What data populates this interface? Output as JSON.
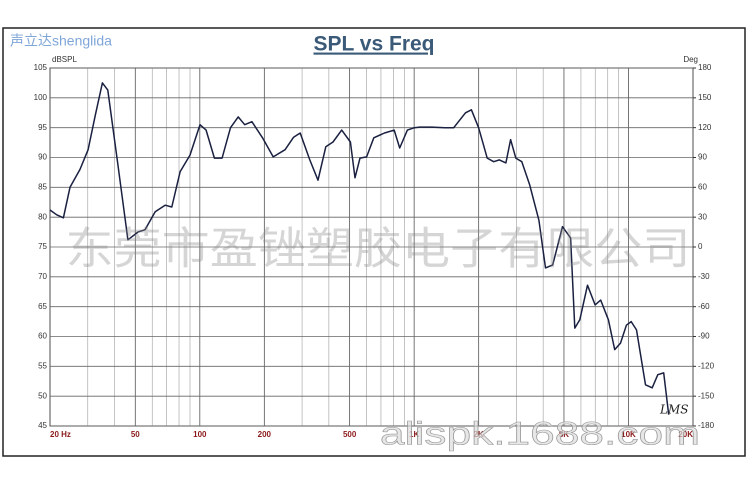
{
  "chart_data": {
    "type": "line",
    "title": "SPL vs Freq",
    "ylabel": "dBSPL",
    "y2label": "Deg",
    "watermarks": [
      "声立达shenglida",
      "东莞市盈锉塑胶电子有限公司",
      "alispk.1688.com"
    ],
    "annotation": "LMS",
    "xscale": "log",
    "grid": true,
    "xlim": [
      20,
      20000
    ],
    "xticks": [
      {
        "value": 20,
        "label": "20 Hz"
      },
      50,
      100,
      200,
      500,
      {
        "value": 1000,
        "label": "1K"
      },
      {
        "value": 2000,
        "label": "2K"
      },
      {
        "value": 5000,
        "label": "5K"
      },
      {
        "value": 10000,
        "label": "10K"
      },
      {
        "value": 20000,
        "label": "20K"
      }
    ],
    "xticks_minor": [
      30,
      40,
      60,
      70,
      80,
      90,
      300,
      400,
      600,
      700,
      800,
      900,
      3000,
      4000,
      6000,
      7000,
      8000,
      9000
    ],
    "ylim": [
      45,
      105
    ],
    "yticks": [
      105,
      100,
      95,
      90,
      85,
      80,
      75,
      70,
      65,
      60,
      55,
      50,
      45
    ],
    "y2lim": [
      -180,
      180
    ],
    "y2ticks": [
      180,
      150,
      120,
      90,
      60,
      30,
      0,
      -30,
      -60,
      -90,
      -120,
      -150,
      -180
    ],
    "x": [
      20,
      21.5,
      23.1,
      24.8,
      27.6,
      30.1,
      32.5,
      35.1,
      37.2,
      41.5,
      46.2,
      51.4,
      55.5,
      61.9,
      68.9,
      74,
      80.9,
      90,
      100.2,
      107,
      117,
      127,
      139,
      151,
      162,
      175,
      196,
      220,
      250,
      274,
      294,
      326,
      356,
      387,
      418,
      459,
      504,
      530,
      559,
      600,
      648,
      727,
      807,
      856,
      930,
      1003,
      1060,
      1209,
      1393,
      1529,
      1736,
      1850,
      1998,
      2191,
      2350,
      2500,
      2680,
      2818,
      2980,
      3180,
      3460,
      3820,
      4100,
      4430,
      4920,
      5370,
      5620,
      5930,
      6440,
      6990,
      7420,
      8060,
      8620,
      9180,
      9780,
      10300,
      10900,
      12000,
      12900,
      13700,
      14600,
      15400
    ],
    "series": [
      {
        "name": "SPL",
        "color": "#1a2040",
        "values": [
          81.2,
          80.4,
          79.9,
          85,
          88,
          91.3,
          97,
          102.5,
          101.3,
          88.8,
          76.2,
          77.5,
          77.9,
          80.9,
          82,
          81.7,
          87.6,
          90.4,
          95.5,
          94.6,
          89.9,
          89.9,
          95,
          96.8,
          95.5,
          96,
          93.3,
          90.1,
          91.3,
          93.4,
          94.1,
          89.6,
          86.2,
          91.8,
          92.6,
          94.6,
          92.6,
          86.6,
          89.9,
          90.1,
          93.3,
          94.1,
          94.6,
          91.6,
          94.6,
          95,
          95.1,
          95.1,
          95,
          95,
          97.5,
          98,
          95,
          89.9,
          89.3,
          89.6,
          89.1,
          93,
          89.9,
          89.3,
          85.4,
          79.5,
          71.5,
          72,
          78.4,
          76.5,
          61.4,
          62.8,
          68.6,
          65.3,
          66.1,
          62.8,
          57.8,
          58.9,
          61.9,
          62.5,
          61.1,
          51.9,
          51.4,
          53.6,
          53.9,
          46.9
        ]
      }
    ]
  }
}
